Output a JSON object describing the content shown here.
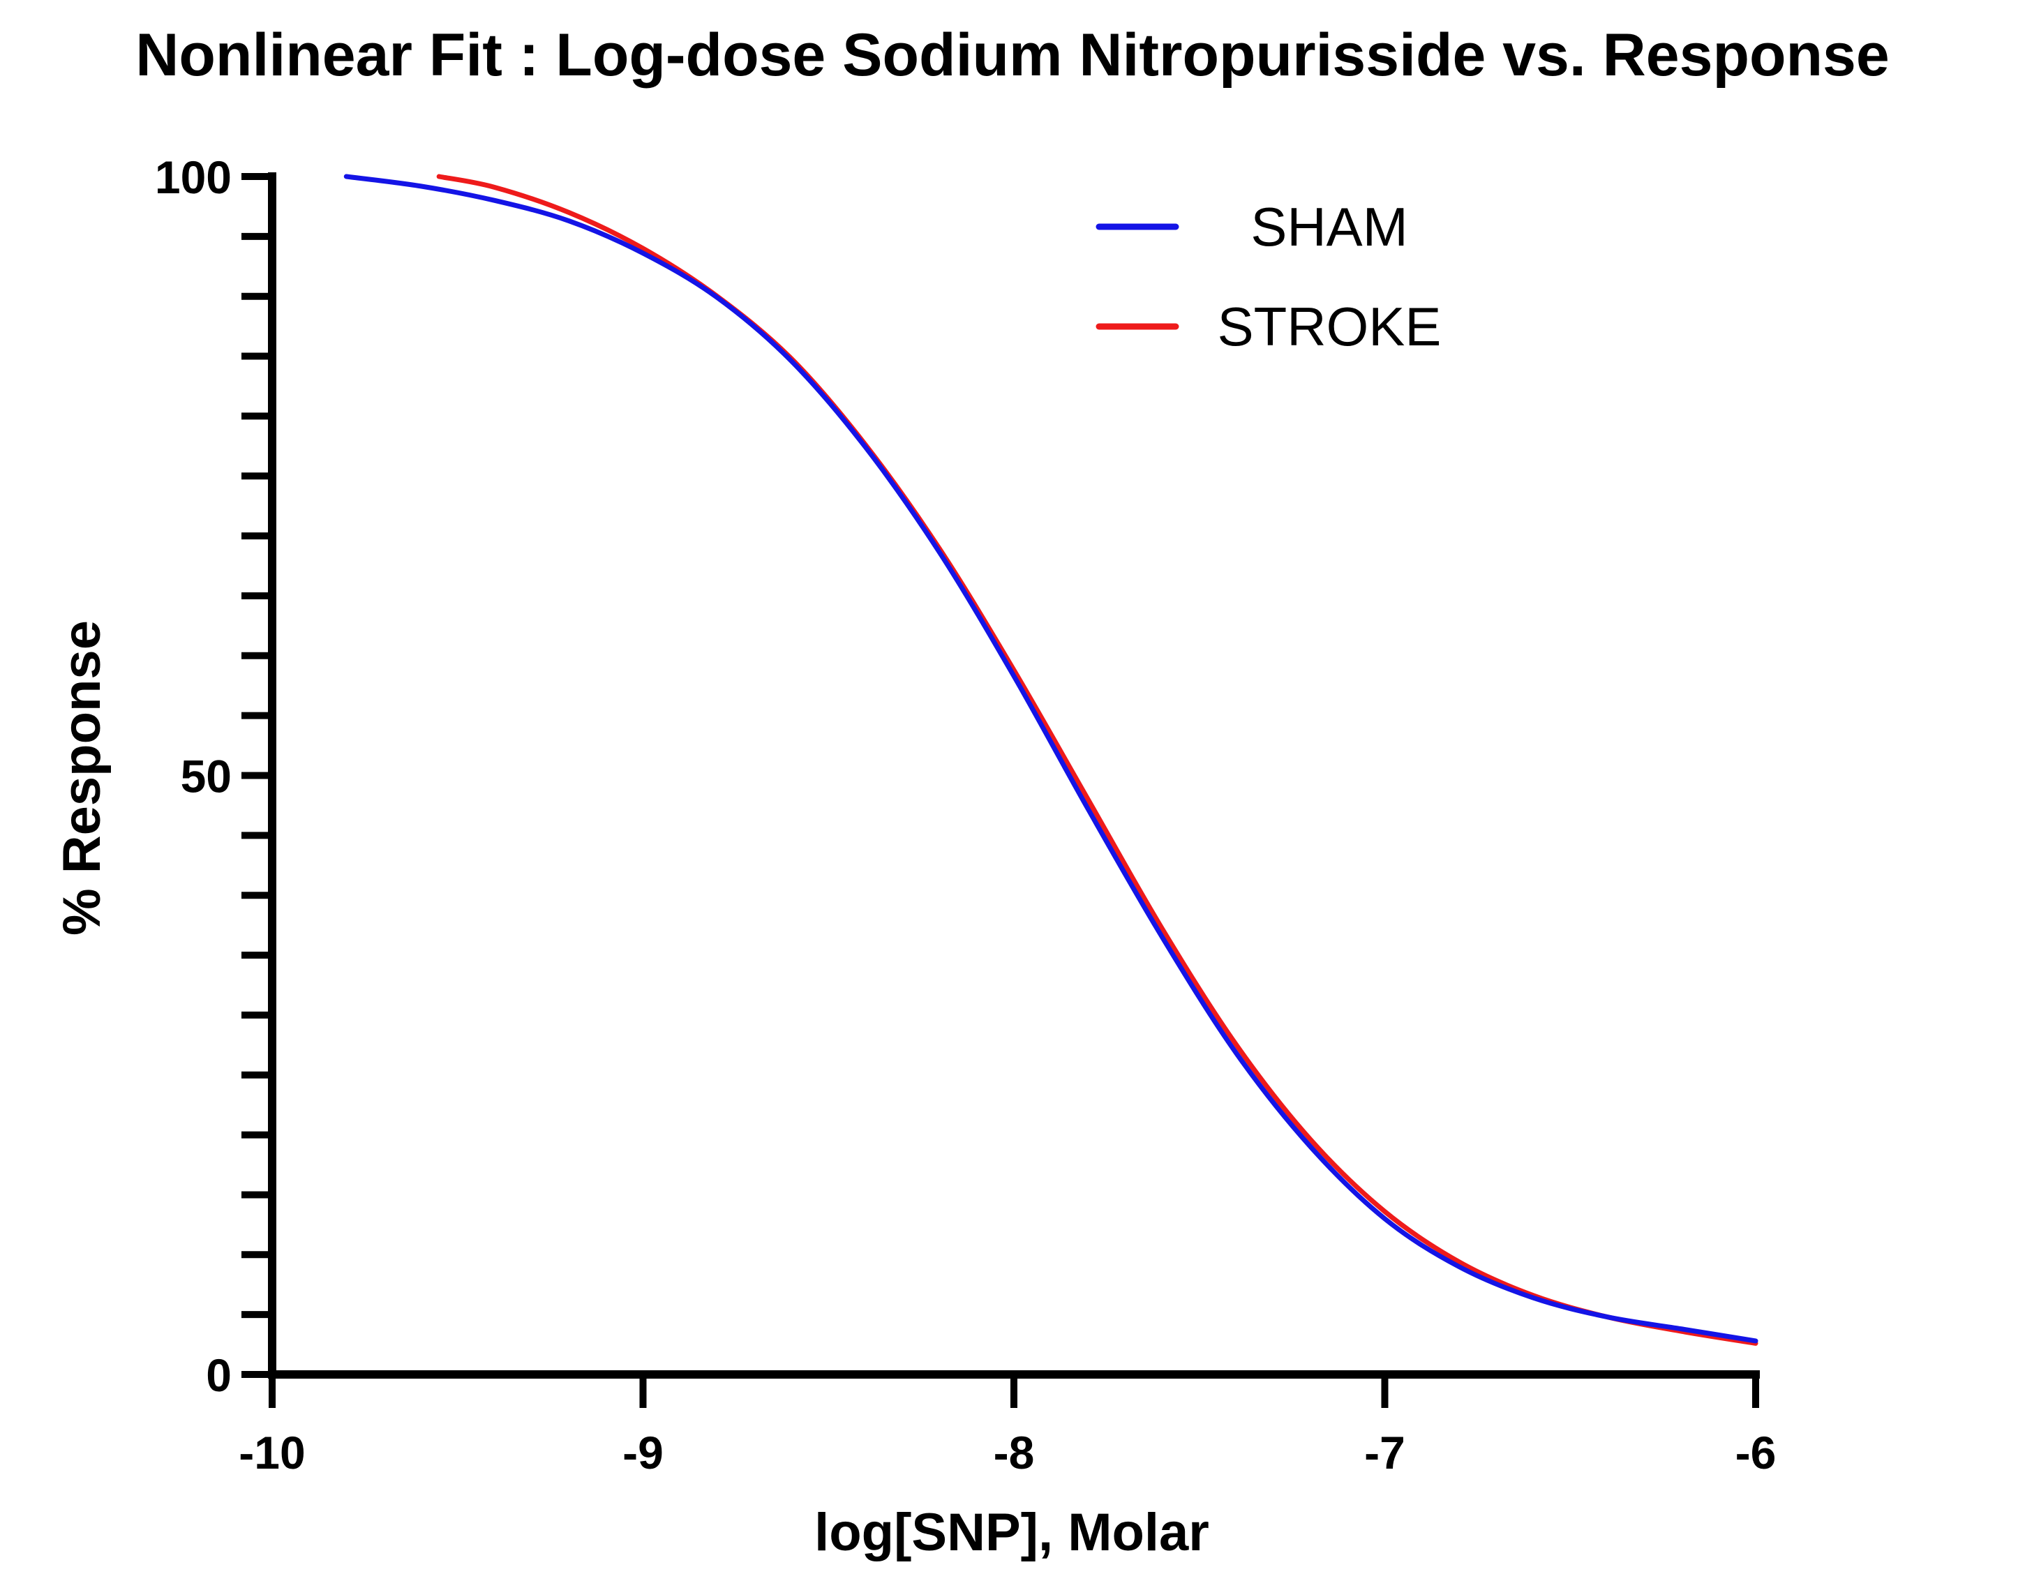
{
  "chart_data": {
    "type": "line",
    "title": "Nonlinear Fit :  Log-dose Sodium Nitropurisside  vs. Response",
    "xlabel": "log[SNP], Molar",
    "ylabel": "% Response",
    "xlim": [
      -10,
      -6
    ],
    "ylim": [
      0,
      100
    ],
    "x_ticks": [
      -10,
      -9,
      -8,
      -7,
      -6
    ],
    "x_tick_labels": [
      "-10",
      "-9",
      "-8",
      "-7",
      "-6"
    ],
    "y_ticks": [
      0,
      50,
      100
    ],
    "y_tick_labels": [
      "0",
      "50",
      "100"
    ],
    "y_minor_step": 5,
    "legend_position": "top-right",
    "series": [
      {
        "name": "SHAM",
        "color": "#1414e6",
        "x": [
          -9.8,
          -9.6,
          -9.4,
          -9.2,
          -9.0,
          -8.8,
          -8.6,
          -8.4,
          -8.2,
          -8.0,
          -7.8,
          -7.6,
          -7.4,
          -7.2,
          -7.0,
          -6.8,
          -6.6,
          -6.4,
          -6.2,
          -6.0
        ],
        "y": [
          100,
          99.2,
          98.0,
          96.3,
          93.6,
          89.9,
          84.6,
          77.4,
          68.6,
          58.3,
          47.2,
          36.5,
          26.8,
          19.0,
          13.0,
          9.0,
          6.4,
          4.8,
          3.8,
          2.8
        ]
      },
      {
        "name": "STROKE",
        "color": "#ee1b1b",
        "x": [
          -9.55,
          -9.4,
          -9.2,
          -9.0,
          -8.8,
          -8.6,
          -8.4,
          -8.2,
          -8.0,
          -7.8,
          -7.6,
          -7.4,
          -7.2,
          -7.0,
          -6.8,
          -6.6,
          -6.4,
          -6.2,
          -6.0
        ],
        "y": [
          100,
          99.1,
          97.0,
          94.0,
          90.0,
          84.8,
          77.6,
          68.9,
          58.8,
          48.0,
          37.2,
          27.5,
          19.6,
          13.6,
          9.4,
          6.6,
          4.8,
          3.6,
          2.6
        ]
      }
    ]
  }
}
